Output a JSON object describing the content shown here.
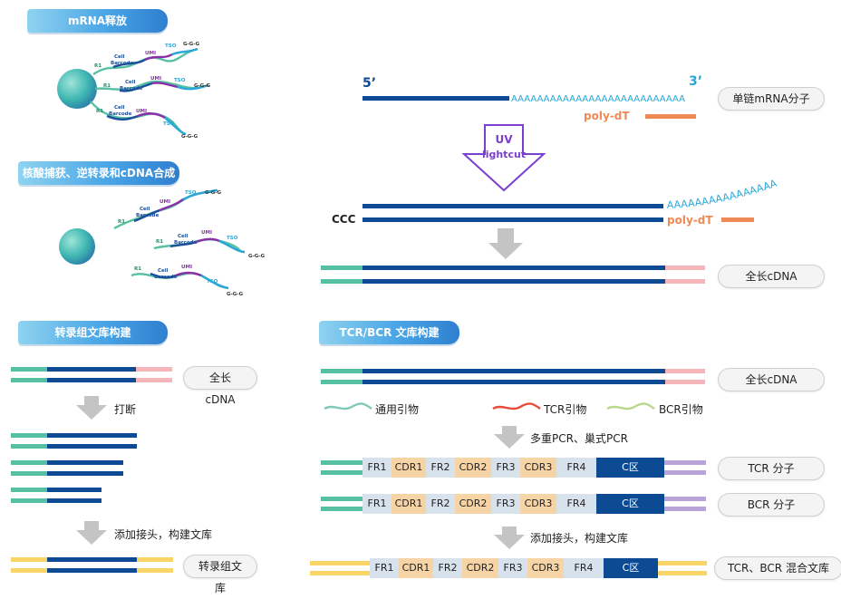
{
  "sections": {
    "mrna_release": "mRNA释放",
    "capture": "核酸捕获、逆转录和cDNA合成",
    "transcriptome_lib": "转录组文库构建",
    "tcr_bcr_lib": "TCR/BCR 文库构建"
  },
  "bead_labels": {
    "r1": "R1",
    "cell": "Cell",
    "barcode": "Barcode",
    "umi": "UMI",
    "tso": "TSO",
    "ggg": "G-G-G"
  },
  "top_right": {
    "five_prime": "5’",
    "three_prime": "3’",
    "polya": "AAAAAAAAAAAAAAAAAAAAAAAAAAA",
    "polyA_curve": "AAAAAAAAAAAAAAAA",
    "polydt": "poly-dT",
    "uv": "UV",
    "lightcut": "lightcut",
    "ccc": "CCC",
    "pill_ss_mrna": "单链mRNA分子",
    "pill_full_cdna": "全长cDNA"
  },
  "bottom_left": {
    "pill_full_cdna": "全长cDNA",
    "fragment": "打断",
    "add_adapter": "添加接头，构建文库",
    "pill_lib": "转录组文库"
  },
  "bottom_right": {
    "pill_full_cdna": "全长cDNA",
    "legend_universal": "通用引物",
    "legend_tcr": "TCR引物",
    "legend_bcr": "BCR引物",
    "multiplex": "多重PCR、巢式PCR",
    "add_adapter": "添加接头，构建文库",
    "segments": [
      "FR1",
      "CDR1",
      "FR2",
      "CDR2",
      "FR3",
      "CDR3",
      "FR4",
      "C区"
    ],
    "pill_tcr": "TCR 分子",
    "pill_bcr": "BCR 分子",
    "pill_mix": "TCR、BCR 混合文库"
  },
  "colors": {
    "navy": "#0d4a94",
    "teal": "#56c0a2",
    "pink": "#f6b5b8",
    "yellow": "#f8d566",
    "purple": "#b8a4d6",
    "orange": "#f08a54",
    "grey": "#c4c4c4"
  }
}
